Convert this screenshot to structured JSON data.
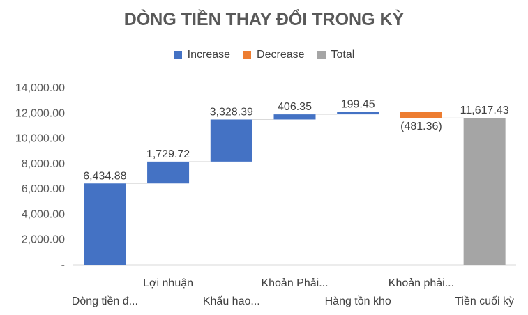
{
  "chart_data": {
    "type": "waterfall",
    "title": "DÒNG TIỀN THAY ĐỔI TRONG KỲ",
    "categories": [
      "Dòng tiền đ...",
      "Lợi nhuận",
      "Khấu hao...",
      "Khoản Phải...",
      "Hàng tồn kho",
      "Khoản phải...",
      "Tiền cuối kỳ"
    ],
    "values": [
      6434.88,
      1729.72,
      3328.39,
      406.35,
      199.45,
      -481.36,
      11617.43
    ],
    "kinds": [
      "increase",
      "increase",
      "increase",
      "increase",
      "increase",
      "decrease",
      "total"
    ],
    "data_labels": [
      "6,434.88",
      "1,729.72",
      "3,328.39",
      "406.35",
      "199.45",
      "(481.36)",
      "11,617.43"
    ],
    "ylim": [
      0,
      14000
    ],
    "yticks": [
      0,
      2000,
      4000,
      6000,
      8000,
      10000,
      12000,
      14000
    ],
    "ytick_labels": [
      "-",
      "2,000.00",
      "4,000.00",
      "6,000.00",
      "8,000.00",
      "10,000.00",
      "12,000.00",
      "14,000.00"
    ],
    "legend": [
      {
        "label": "Increase",
        "color": "#4472C4"
      },
      {
        "label": "Decrease",
        "color": "#ED7D31"
      },
      {
        "label": "Total",
        "color": "#A5A5A5"
      }
    ],
    "legend_position": "top",
    "grid": false
  }
}
